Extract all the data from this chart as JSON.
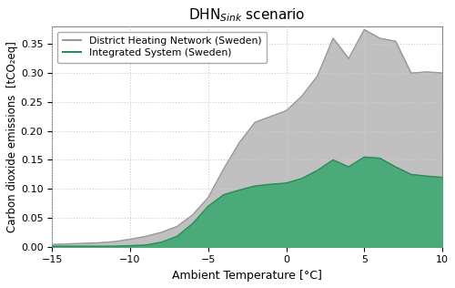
{
  "title_main": "DHN",
  "title_sub": "Sink",
  "title_end": " scenario",
  "xlabel": "Ambient Temperature [°C]",
  "ylabel": "Carbon dioxide emissions  [tCO₂eq]",
  "xlim": [
    -15,
    10
  ],
  "ylim": [
    0.0,
    0.38
  ],
  "yticks": [
    0.0,
    0.05,
    0.1,
    0.15,
    0.2,
    0.25,
    0.3,
    0.35
  ],
  "xticks": [
    -15,
    -10,
    -5,
    0,
    5,
    10
  ],
  "legend_dhn": "District Heating Network (Sweden)",
  "legend_is": "Integrated System (Sweden)",
  "dhn_color": "#c0c0c0",
  "is_color": "#4aaa7a",
  "dhn_line_color": "#999999",
  "is_line_color": "#2e8b57",
  "background_color": "#ffffff",
  "grid_color": "#cccccc",
  "temp": [
    -15,
    -14,
    -13,
    -12,
    -11,
    -10,
    -9,
    -8,
    -7,
    -6,
    -5,
    -4,
    -3,
    -2,
    -1,
    0,
    1,
    2,
    3,
    4,
    5,
    6,
    7,
    8,
    9,
    10
  ],
  "dhn_values": [
    0.004,
    0.005,
    0.006,
    0.007,
    0.009,
    0.013,
    0.018,
    0.025,
    0.035,
    0.055,
    0.085,
    0.135,
    0.18,
    0.215,
    0.225,
    0.235,
    0.26,
    0.295,
    0.36,
    0.325,
    0.375,
    0.36,
    0.355,
    0.3,
    0.302,
    0.3
  ],
  "is_values": [
    0.001,
    0.001,
    0.001,
    0.001,
    0.001,
    0.002,
    0.003,
    0.008,
    0.018,
    0.04,
    0.07,
    0.09,
    0.098,
    0.105,
    0.108,
    0.11,
    0.118,
    0.132,
    0.15,
    0.138,
    0.155,
    0.153,
    0.138,
    0.125,
    0.122,
    0.12
  ]
}
